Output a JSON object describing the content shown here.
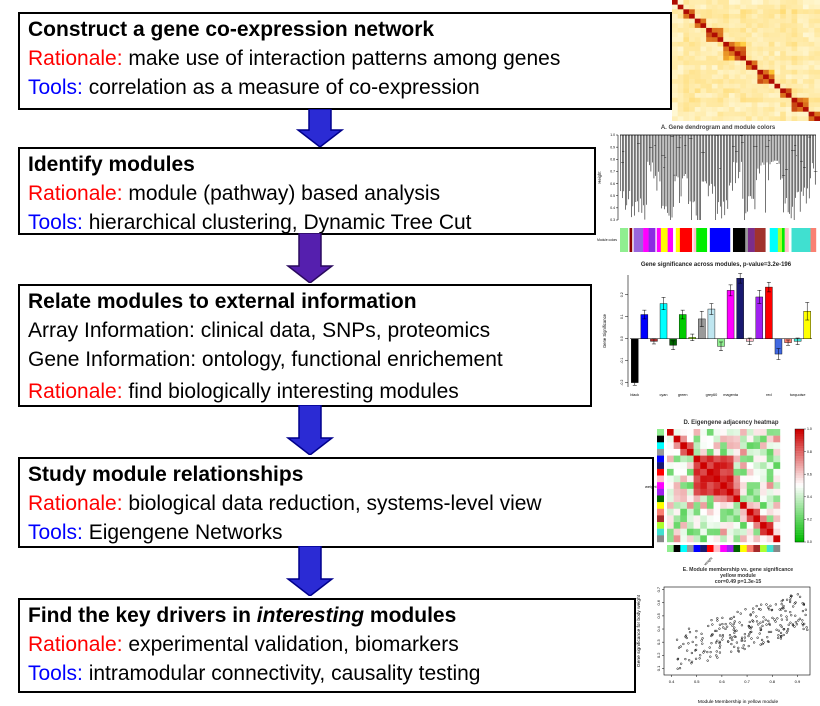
{
  "colors": {
    "rationale_label": "#ff0000",
    "tools_label": "#0000ff",
    "arrow_blue": "#2b2bd4",
    "arrow_purple": "#551fae",
    "arrow_outline": "#00008b"
  },
  "boxes": [
    {
      "title_pre": "Construct a gene co-expression network",
      "title_em": "",
      "title_post": "",
      "lines": [
        {
          "label": "Rationale:",
          "label_color": "red",
          "text": " make use of interaction patterns among genes"
        },
        {
          "label": "Tools:",
          "label_color": "blue",
          "text": " correlation as a measure of co-expression"
        }
      ]
    },
    {
      "title_pre": "Identify modules",
      "title_em": "",
      "title_post": "",
      "lines": [
        {
          "label": "Rationale:",
          "label_color": "red",
          "text": " module (pathway) based analysis"
        },
        {
          "label": "Tools:",
          "label_color": "blue",
          "text": " hierarchical clustering, Dynamic Tree Cut"
        }
      ]
    },
    {
      "title_pre": "Relate modules to external information",
      "title_em": "",
      "title_post": "",
      "lines": [
        {
          "label": "",
          "label_color": "black",
          "text": "Array Information: clinical data, SNPs, proteomics"
        },
        {
          "label": "",
          "label_color": "black",
          "text": "Gene Information: ontology, functional enrichement"
        },
        {
          "label": "Rationale:",
          "label_color": "red",
          "text": " find biologically interesting modules"
        }
      ]
    },
    {
      "title_pre": "Study module relationships",
      "title_em": "",
      "title_post": "",
      "lines": [
        {
          "label": "Rationale:",
          "label_color": "red",
          "text": " biological data reduction, systems-level view"
        },
        {
          "label": "Tools:",
          "label_color": "blue",
          "text": " Eigengene Networks"
        }
      ]
    },
    {
      "title_pre": "Find the key drivers in ",
      "title_em": "interesting",
      "title_post": " modules",
      "lines": [
        {
          "label": "Rationale:",
          "label_color": "red",
          "text": " experimental validation, biomarkers"
        },
        {
          "label": "Tools:",
          "label_color": "blue",
          "text": " intramodular connectivity, causality testing"
        }
      ]
    }
  ],
  "arrows": [
    {
      "color": "#2b2bd4"
    },
    {
      "color": "#551fae"
    },
    {
      "color": "#2b2bd4"
    },
    {
      "color": "#2b2bd4"
    }
  ],
  "chart_data": [
    {
      "id": "tom-heatmap",
      "type": "heatmap",
      "title": "",
      "description": "Topological overlap matrix plot: pale yellow background with red-orange module blocks along the diagonal",
      "n": 26,
      "diagonal_block_sizes": [
        1,
        1,
        2,
        2,
        3,
        4,
        2,
        3,
        1,
        2,
        3,
        2
      ],
      "palette": [
        "#fffde6",
        "#ffc833",
        "#aa0000"
      ]
    },
    {
      "id": "gene-dendrogram",
      "type": "dendrogram",
      "title": "A. Gene dendrogram and module colors",
      "ylabel": "Height",
      "yticks": [
        "0.3",
        "0.4",
        "0.5",
        "0.6",
        "0.7",
        "0.8",
        "0.9",
        "1.0"
      ],
      "strip_label": "Module colors",
      "module_strip_colors": [
        {
          "c": "#90ee90",
          "w": 6
        },
        {
          "c": "#ffffff",
          "w": 1
        },
        {
          "c": "#8b0000",
          "w": 2
        },
        {
          "c": "#ffffff",
          "w": 1
        },
        {
          "c": "#9966dd",
          "w": 7
        },
        {
          "c": "#ff00ff",
          "w": 4
        },
        {
          "c": "#8a2be2",
          "w": 5
        },
        {
          "c": "#ffffff",
          "w": 1
        },
        {
          "c": "#ff00ff",
          "w": 3
        },
        {
          "c": "#ffff00",
          "w": 5
        },
        {
          "c": "#ff00ff",
          "w": 4
        },
        {
          "c": "#ffffff",
          "w": 2
        },
        {
          "c": "#ffff00",
          "w": 3
        },
        {
          "c": "#ff0000",
          "w": 9
        },
        {
          "c": "#ffffff",
          "w": 1
        },
        {
          "c": "#ffc0cb",
          "w": 2
        },
        {
          "c": "#00ee00",
          "w": 8
        },
        {
          "c": "#ffffff",
          "w": 2
        },
        {
          "c": "#0000ff",
          "w": 15
        },
        {
          "c": "#ffffff",
          "w": 2
        },
        {
          "c": "#000000",
          "w": 9
        },
        {
          "c": "#9a9a9a",
          "w": 2
        },
        {
          "c": "#7b2d8b",
          "w": 5
        },
        {
          "c": "#a0322d",
          "w": 8
        },
        {
          "c": "#ffffff",
          "w": 3
        },
        {
          "c": "#00ffff",
          "w": 6
        },
        {
          "c": "#adff2f",
          "w": 3
        },
        {
          "c": "#00ee00",
          "w": 2
        },
        {
          "c": "#ffc0cb",
          "w": 3
        },
        {
          "c": "#ffffff",
          "w": 2
        },
        {
          "c": "#40e0d0",
          "w": 14
        },
        {
          "c": "#fa8072",
          "w": 4
        }
      ]
    },
    {
      "id": "gene-significance-bars",
      "type": "bar",
      "title": "Gene significance across modules, p-value=3.2e-196",
      "ylabel": "Gene Significance",
      "yticks": [
        "-0.2",
        "-0.1",
        "0.0",
        "0.1",
        "0.2"
      ],
      "ylim": [
        -0.22,
        0.29
      ],
      "categories": [
        "black",
        "blue",
        "brown",
        "cyan",
        "darkgreen",
        "green",
        "greenyellow",
        "grey",
        "grey60",
        "lightgreen",
        "magenta",
        "midnightblue",
        "pink",
        "purple",
        "red",
        "royalblue",
        "salmon",
        "turquoise",
        "yellow"
      ],
      "values": [
        -0.2,
        0.11,
        -0.012,
        0.16,
        -0.03,
        0.11,
        0.006,
        0.09,
        0.135,
        -0.035,
        0.22,
        0.275,
        -0.012,
        0.19,
        0.235,
        -0.07,
        -0.018,
        -0.012,
        0.125
      ],
      "errors": [
        0.012,
        0.02,
        0.012,
        0.028,
        0.02,
        0.02,
        0.015,
        0.035,
        0.025,
        0.02,
        0.025,
        0.022,
        0.015,
        0.03,
        0.022,
        0.025,
        0.012,
        0.015,
        0.04
      ],
      "bar_colors": [
        "#000000",
        "#0000ff",
        "#a52a2a",
        "#00ffff",
        "#006400",
        "#00cc00",
        "#adff2f",
        "#9a9a9a",
        "#bfe6f0",
        "#90ee90",
        "#ff00ff",
        "#191970",
        "#ffc0cb",
        "#a020f0",
        "#ff0000",
        "#4169e1",
        "#fa8072",
        "#40e0d0",
        "#ffff00"
      ],
      "xtick_positions": [
        0,
        3,
        5,
        8,
        10,
        14,
        17
      ],
      "xtick_labels": [
        "black",
        "cyan",
        "green",
        "grey60",
        "magenta",
        "red",
        "turquoise"
      ]
    },
    {
      "id": "eigengene-heatmap",
      "type": "heatmap",
      "title": "D. Eigengene adjacency heatmap",
      "row_label": "weight",
      "col_label": "weight",
      "legend_ticks": [
        "1.0",
        "0.8",
        "0.6",
        "0.4",
        "0.2",
        "0.0"
      ],
      "n": 17,
      "side_colors": [
        "#90ee90",
        "#000000",
        "#00ffff",
        "#999999",
        "#0000ff",
        "#191970",
        "#ff0000",
        "#ffc0cb",
        "#ff00ff",
        "#a020f0",
        "#006400",
        "#ffff00",
        "#fa8072",
        "#a52a2a",
        "#adff2f",
        "#40e0d0",
        "#888888"
      ],
      "palette": {
        "high": "#cc0000",
        "mid": "#ffffff",
        "low": "#00bb00"
      }
    },
    {
      "id": "mm-gs-scatter",
      "type": "scatter",
      "title_line1": "E. Module membership vs. gene significance",
      "title_line2": "yellow module",
      "title_line3": "cor=0.49 p=1.3e-15",
      "xlabel": "Module Membership in yellow module",
      "ylabel": "Gene significance for body weight",
      "xticks": [
        "0.4",
        "0.5",
        "0.6",
        "0.7",
        "0.8",
        "0.9"
      ],
      "yticks": [
        "0.1",
        "0.2",
        "0.3",
        "0.4",
        "0.5",
        "0.6",
        "0.7"
      ],
      "xlim": [
        0.37,
        0.95
      ],
      "ylim": [
        0.05,
        0.72
      ],
      "n_points": 240
    }
  ]
}
